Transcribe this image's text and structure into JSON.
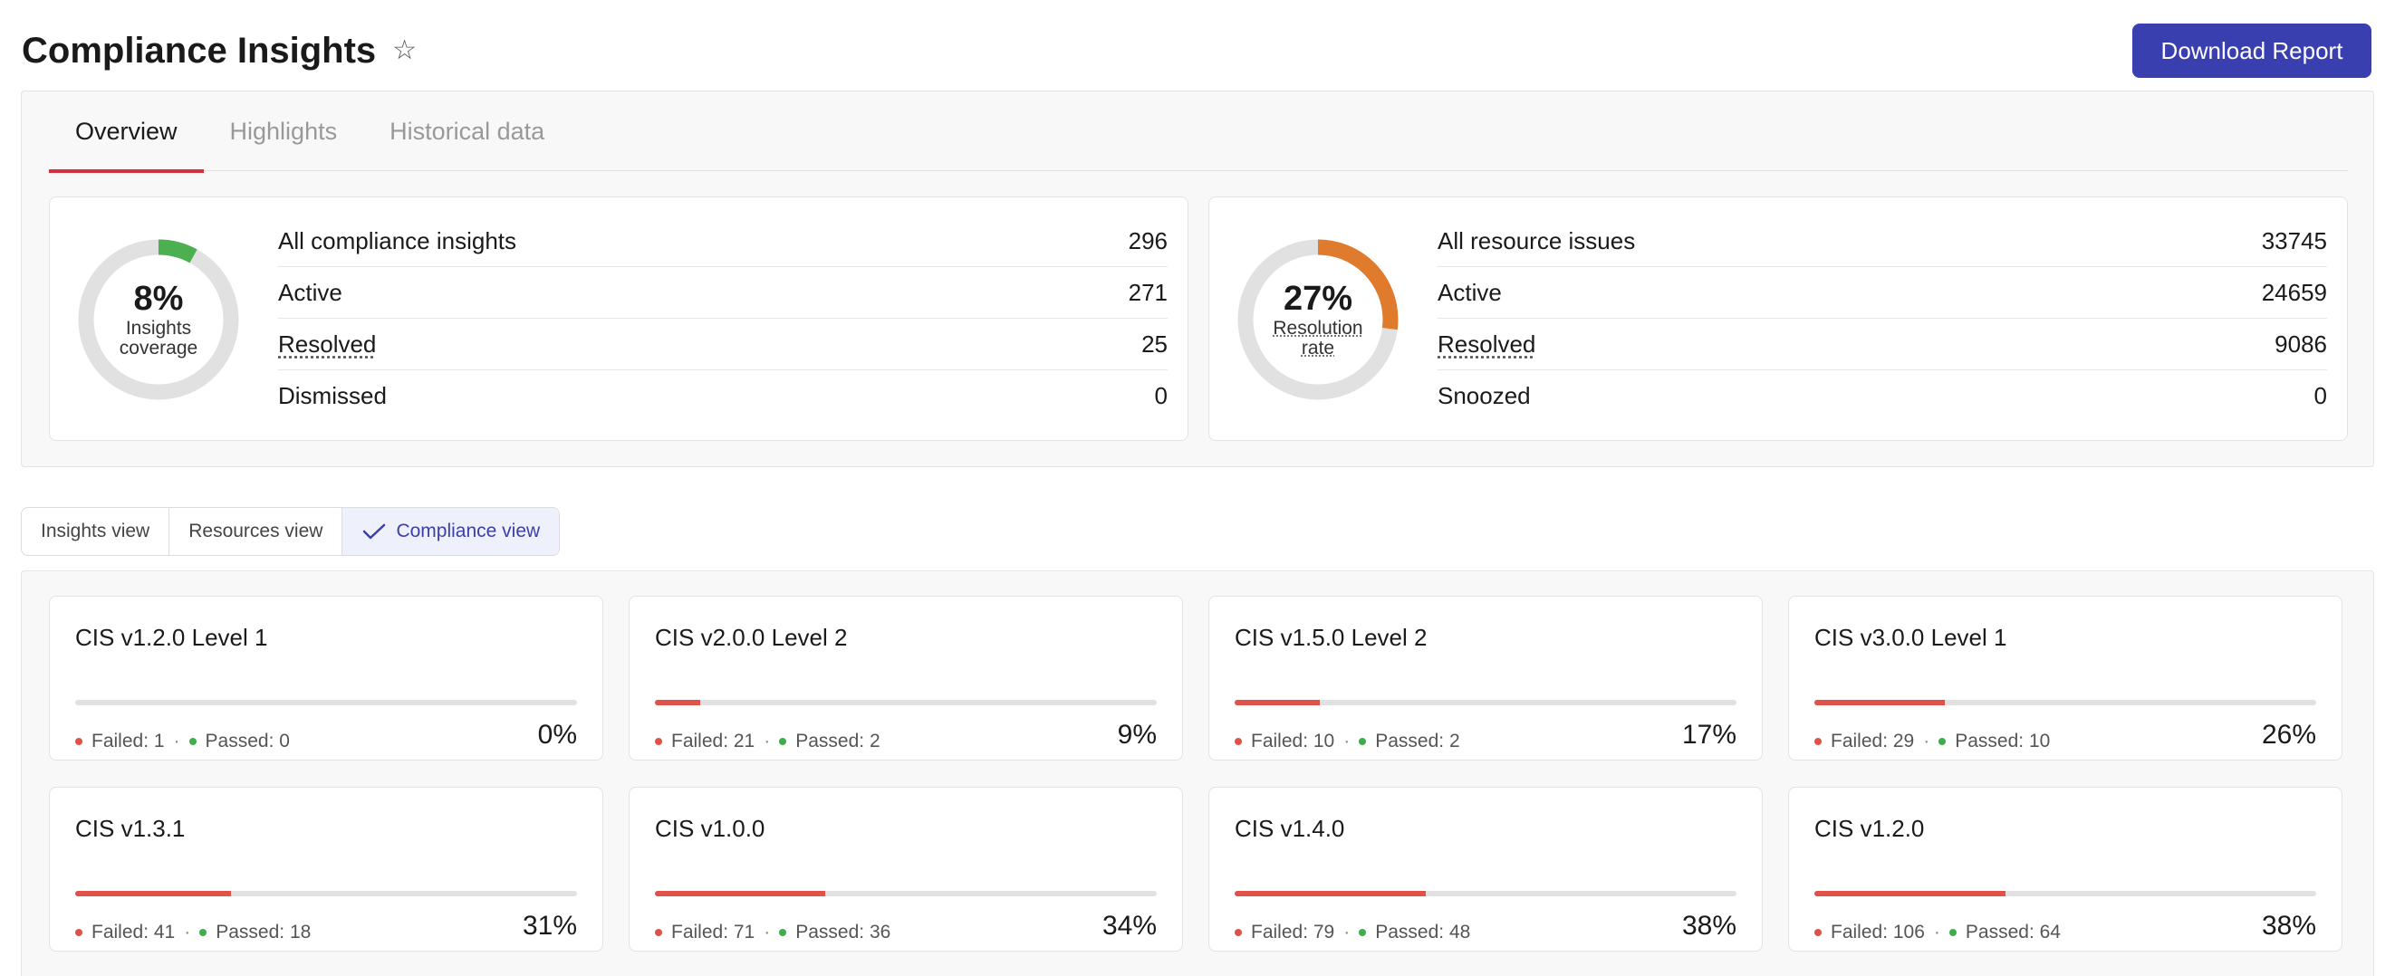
{
  "header": {
    "title": "Compliance Insights",
    "star_icon": "star-outline-icon",
    "download_label": "Download Report",
    "accent": "#3a3fb0"
  },
  "tabs": [
    {
      "label": "Overview",
      "active": true
    },
    {
      "label": "Highlights",
      "active": false
    },
    {
      "label": "Historical data",
      "active": false
    }
  ],
  "insights_card": {
    "percent_value": 8,
    "percent_text": "8%",
    "label": "Insights coverage",
    "color": "#4caf50",
    "rows": [
      {
        "label": "All compliance insights",
        "value": "296"
      },
      {
        "label": "Active",
        "value": "271"
      },
      {
        "label": "Resolved",
        "value": "25"
      },
      {
        "label": "Dismissed",
        "value": "0"
      }
    ]
  },
  "resources_card": {
    "percent_value": 27,
    "percent_text": "27%",
    "label": "Resolution rate",
    "color": "#e07a2c",
    "rows": [
      {
        "label": "All resource issues",
        "value": "33745"
      },
      {
        "label": "Active",
        "value": "24659"
      },
      {
        "label": "Resolved",
        "value": "9086"
      },
      {
        "label": "Snoozed",
        "value": "0"
      }
    ]
  },
  "views": [
    {
      "label": "Insights view",
      "active": false
    },
    {
      "label": "Resources view",
      "active": false
    },
    {
      "label": "Compliance view",
      "active": true,
      "icon": "check-icon"
    }
  ],
  "cis_cards": [
    {
      "title": "CIS v1.2.0 Level 1",
      "failed": "Failed: 1",
      "passed": "Passed: 0",
      "pct_text": "0%",
      "pct": 0
    },
    {
      "title": "CIS v2.0.0 Level 2",
      "failed": "Failed: 21",
      "passed": "Passed: 2",
      "pct_text": "9%",
      "pct": 9
    },
    {
      "title": "CIS v1.5.0 Level 2",
      "failed": "Failed: 10",
      "passed": "Passed: 2",
      "pct_text": "17%",
      "pct": 17
    },
    {
      "title": "CIS v3.0.0 Level 1",
      "failed": "Failed: 29",
      "passed": "Passed: 10",
      "pct_text": "26%",
      "pct": 26
    },
    {
      "title": "CIS v1.3.1",
      "failed": "Failed: 41",
      "passed": "Passed: 18",
      "pct_text": "31%",
      "pct": 31
    },
    {
      "title": "CIS v1.0.0",
      "failed": "Failed: 71",
      "passed": "Passed: 36",
      "pct_text": "34%",
      "pct": 34
    },
    {
      "title": "CIS v1.4.0",
      "failed": "Failed: 79",
      "passed": "Passed: 48",
      "pct_text": "38%",
      "pct": 38
    },
    {
      "title": "CIS v1.2.0",
      "failed": "Failed: 106",
      "passed": "Passed: 64",
      "pct_text": "38%",
      "pct": 38
    }
  ],
  "colors": {
    "failed": "#e0514a",
    "passed": "#3fae4a",
    "track": "#e1e1e1",
    "active_tab": "#d32f3c"
  }
}
